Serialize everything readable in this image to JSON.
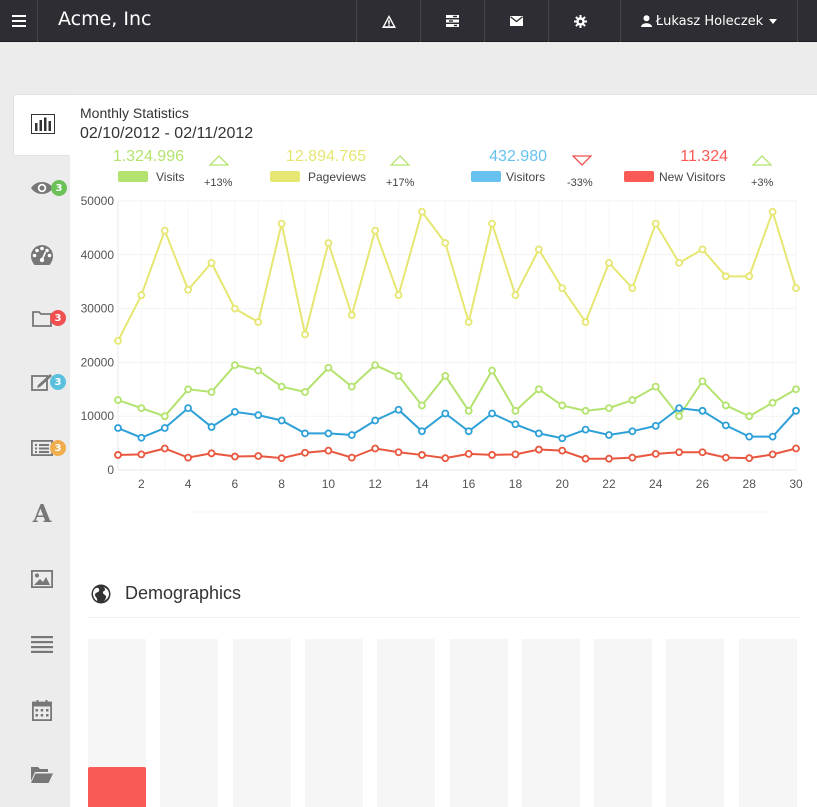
{
  "app": {
    "brand": "Acme, Inc"
  },
  "topbar": {
    "menu_icon": "hamburger-icon",
    "buttons": [
      {
        "name": "alert-icon"
      },
      {
        "name": "tasks-icon"
      },
      {
        "name": "mail-icon"
      },
      {
        "name": "gear-icon"
      }
    ],
    "user_name": "Łukasz Holeczek"
  },
  "sidebar": {
    "items": [
      {
        "icon": "bar-chart-icon",
        "badge": null,
        "active": true
      },
      {
        "icon": "eye-icon",
        "badge": "3",
        "badge_color": "#6ac259"
      },
      {
        "icon": "dashboard-icon",
        "badge": null
      },
      {
        "icon": "folder-icon",
        "badge": "3",
        "badge_color": "#f05050"
      },
      {
        "icon": "edit-icon",
        "badge": "3",
        "badge_color": "#5bc0de"
      },
      {
        "icon": "list-alt-icon",
        "badge": "3",
        "badge_color": "#f0ad4e"
      },
      {
        "icon": "font-icon",
        "badge": null
      },
      {
        "icon": "picture-icon",
        "badge": null
      },
      {
        "icon": "align-justify-icon",
        "badge": null
      },
      {
        "icon": "calendar-icon",
        "badge": null
      },
      {
        "icon": "folder-open-icon",
        "badge": null
      }
    ]
  },
  "stats": {
    "title": "Monthly Statistics",
    "range": "02/10/2012 - 02/11/2012",
    "metrics": [
      {
        "value": "1.324.996",
        "label": "Visits",
        "change": "+13%",
        "trend": "up",
        "color": "#b3e36e"
      },
      {
        "value": "12.894.765",
        "label": "Pageviews",
        "change": "+17%",
        "trend": "up",
        "color": "#e6e672"
      },
      {
        "value": "432.980",
        "label": "Visitors",
        "change": "-33%",
        "trend": "down",
        "color": "#67c2ef"
      },
      {
        "value": "11.324",
        "label": "New Visitors",
        "change": "+3%",
        "trend": "up",
        "color": "#fa5a55"
      }
    ]
  },
  "chart_data": {
    "type": "line",
    "x": [
      1,
      2,
      3,
      4,
      5,
      6,
      7,
      8,
      9,
      10,
      11,
      12,
      13,
      14,
      15,
      16,
      17,
      18,
      19,
      20,
      21,
      22,
      23,
      24,
      25,
      26,
      27,
      28,
      29,
      30
    ],
    "xticks": [
      2,
      4,
      6,
      8,
      10,
      12,
      14,
      16,
      18,
      20,
      22,
      24,
      26,
      28,
      30
    ],
    "ylim": [
      0,
      50000
    ],
    "yticks": [
      0,
      10000,
      20000,
      30000,
      40000,
      50000
    ],
    "grid": true,
    "series": [
      {
        "name": "Pageviews",
        "color": "#e6e672",
        "values": [
          24000,
          32500,
          44500,
          33500,
          38500,
          30000,
          27500,
          45800,
          25200,
          42200,
          28800,
          44500,
          32500,
          48000,
          42200,
          27500,
          45800,
          32500,
          41000,
          33800,
          27500,
          38500,
          33800,
          45800,
          38500,
          41000,
          36000,
          36000,
          48000,
          33800
        ]
      },
      {
        "name": "Visits",
        "color": "#b3e36e",
        "values": [
          13000,
          11500,
          10000,
          15000,
          14500,
          19500,
          18500,
          15500,
          14500,
          19000,
          15500,
          19500,
          17500,
          12000,
          17500,
          11000,
          18500,
          11000,
          15000,
          12000,
          11000,
          11500,
          13000,
          15500,
          10000,
          16500,
          12000,
          10000,
          12500,
          15000
        ]
      },
      {
        "name": "Visitors",
        "color": "#2ea0d8",
        "values": [
          7800,
          6000,
          7800,
          11500,
          8000,
          10800,
          10200,
          9200,
          6800,
          6800,
          6500,
          9200,
          11200,
          7200,
          10500,
          7200,
          10500,
          8500,
          6800,
          5900,
          7500,
          6500,
          7200,
          8200,
          11500,
          11000,
          8300,
          6200,
          6200,
          11000
        ]
      },
      {
        "name": "New Visitors",
        "color": "#e9573f",
        "values": [
          2800,
          2900,
          4000,
          2300,
          3100,
          2500,
          2600,
          2200,
          3200,
          3600,
          2300,
          4000,
          3300,
          2800,
          2200,
          3000,
          2800,
          2900,
          3800,
          3600,
          2100,
          2100,
          2300,
          3000,
          3300,
          3300,
          2300,
          2200,
          2900,
          4000
        ]
      }
    ]
  },
  "demographics": {
    "title": "Demographics",
    "icon": "globe-icon",
    "bars": [
      0.25,
      0.01,
      0,
      0,
      0,
      0,
      0,
      0,
      0,
      0
    ],
    "bar_color": "#fa5a55"
  }
}
